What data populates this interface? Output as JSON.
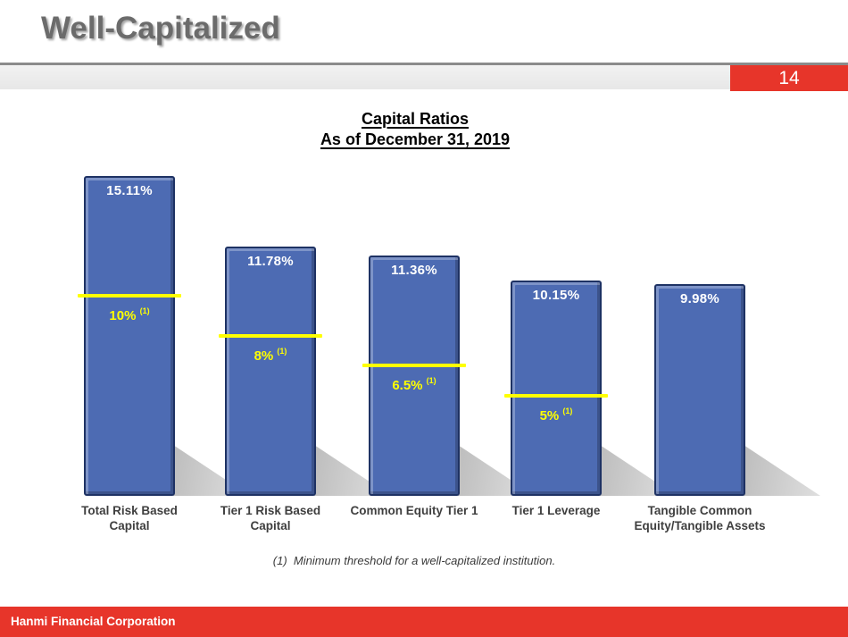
{
  "header": {
    "title": "Well-Capitalized"
  },
  "page": {
    "number": "14"
  },
  "chart": {
    "title_line1": "Capital Ratios",
    "title_line2": "As of December 31, 2019"
  },
  "chart_data": {
    "type": "bar",
    "title": "Capital Ratios As of December 31, 2019",
    "categories": [
      "Total Risk Based Capital",
      "Tier 1 Risk Based Capital",
      "Common Equity Tier 1",
      "Tier 1 Leverage",
      "Tangible Common Equity/Tangible Assets"
    ],
    "category_display": [
      "Total Risk Based\nCapital",
      "Tier 1 Risk Based\nCapital",
      "Common Equity Tier 1",
      "Tier 1 Leverage",
      "Tangible Common\nEquity/Tangible Assets"
    ],
    "values": [
      15.11,
      11.78,
      11.36,
      10.15,
      9.98
    ],
    "value_labels": [
      "15.11%",
      "11.78%",
      "11.36%",
      "10.15%",
      "9.98%"
    ],
    "thresholds": [
      10,
      8,
      6.5,
      5,
      null
    ],
    "threshold_labels": [
      "10%",
      "8%",
      "6.5%",
      "5%",
      null
    ],
    "threshold_note_marker": "(1)",
    "ylim": [
      0,
      15.5
    ],
    "grid": false,
    "legend": "none",
    "bar_color": "#4d6bb3",
    "bar_border_color": "#1e3264",
    "threshold_color": "#ffff00",
    "value_label_color": "#ffffff"
  },
  "footnote": {
    "text": "(1)  Minimum threshold for a well-capitalized institution."
  },
  "footer": {
    "company": "Hanmi Financial Corporation"
  },
  "colors": {
    "accent_red": "#e7352a"
  }
}
